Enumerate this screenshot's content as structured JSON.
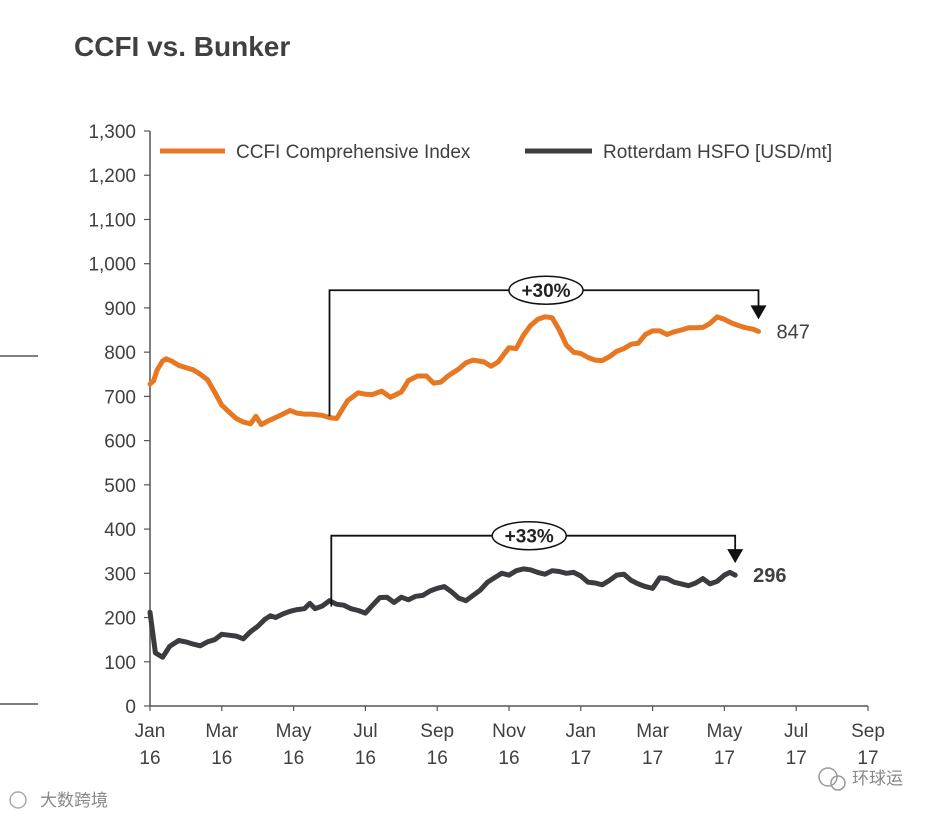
{
  "chart_data": {
    "type": "line",
    "title": "CCFI vs. Bunker",
    "ylim": [
      0,
      1300
    ],
    "yticks": [
      "0",
      "100",
      "200",
      "300",
      "400",
      "500",
      "600",
      "700",
      "800",
      "900",
      "1,000",
      "1,100",
      "1,200",
      "1,300"
    ],
    "xticks": [
      {
        "month": "Jan",
        "year": "16",
        "t": 0
      },
      {
        "month": "Mar",
        "year": "16",
        "t": 2
      },
      {
        "month": "May",
        "year": "16",
        "t": 4
      },
      {
        "month": "Jul",
        "year": "16",
        "t": 6
      },
      {
        "month": "Sep",
        "year": "16",
        "t": 8
      },
      {
        "month": "Nov",
        "year": "16",
        "t": 10
      },
      {
        "month": "Jan",
        "year": "17",
        "t": 12
      },
      {
        "month": "Mar",
        "year": "17",
        "t": 14
      },
      {
        "month": "May",
        "year": "17",
        "t": 16
      },
      {
        "month": "Jul",
        "year": "17",
        "t": 18
      },
      {
        "month": "Sep",
        "year": "17",
        "t": 20
      }
    ],
    "series": [
      {
        "name": "CCFI Comprehensive Index",
        "color": "#e87722",
        "points": [
          [
            0.0,
            728
          ],
          [
            0.1,
            735
          ],
          [
            0.2,
            760
          ],
          [
            0.35,
            780
          ],
          [
            0.45,
            785
          ],
          [
            0.6,
            780
          ],
          [
            0.8,
            770
          ],
          [
            1.0,
            765
          ],
          [
            1.2,
            760
          ],
          [
            1.4,
            750
          ],
          [
            1.6,
            738
          ],
          [
            1.8,
            710
          ],
          [
            2.0,
            680
          ],
          [
            2.2,
            665
          ],
          [
            2.4,
            650
          ],
          [
            2.6,
            642
          ],
          [
            2.8,
            638
          ],
          [
            2.95,
            655
          ],
          [
            3.1,
            636
          ],
          [
            3.3,
            645
          ],
          [
            3.5,
            652
          ],
          [
            3.7,
            660
          ],
          [
            3.9,
            668
          ],
          [
            4.1,
            662
          ],
          [
            4.3,
            660
          ],
          [
            4.5,
            660
          ],
          [
            4.8,
            657
          ],
          [
            5.0,
            652
          ],
          [
            5.2,
            650
          ],
          [
            5.5,
            690
          ],
          [
            5.8,
            708
          ],
          [
            6.0,
            705
          ],
          [
            6.2,
            704
          ],
          [
            6.45,
            712
          ],
          [
            6.7,
            698
          ],
          [
            7.0,
            710
          ],
          [
            7.2,
            736
          ],
          [
            7.45,
            746
          ],
          [
            7.7,
            746
          ],
          [
            7.9,
            730
          ],
          [
            8.1,
            732
          ],
          [
            8.3,
            746
          ],
          [
            8.6,
            762
          ],
          [
            8.8,
            776
          ],
          [
            9.0,
            782
          ],
          [
            9.3,
            778
          ],
          [
            9.5,
            768
          ],
          [
            9.7,
            778
          ],
          [
            10.0,
            810
          ],
          [
            10.2,
            808
          ],
          [
            10.4,
            838
          ],
          [
            10.6,
            860
          ],
          [
            10.8,
            874
          ],
          [
            11.0,
            880
          ],
          [
            11.2,
            878
          ],
          [
            11.4,
            850
          ],
          [
            11.6,
            816
          ],
          [
            11.8,
            800
          ],
          [
            12.0,
            797
          ],
          [
            12.2,
            788
          ],
          [
            12.4,
            782
          ],
          [
            12.6,
            781
          ],
          [
            12.8,
            790
          ],
          [
            13.0,
            802
          ],
          [
            13.2,
            808
          ],
          [
            13.4,
            818
          ],
          [
            13.6,
            820
          ],
          [
            13.8,
            840
          ],
          [
            14.0,
            848
          ],
          [
            14.2,
            848
          ],
          [
            14.4,
            840
          ],
          [
            14.6,
            846
          ],
          [
            14.8,
            850
          ],
          [
            15.0,
            855
          ],
          [
            15.2,
            855
          ],
          [
            15.4,
            856
          ],
          [
            15.6,
            865
          ],
          [
            15.8,
            880
          ],
          [
            16.0,
            874
          ],
          [
            16.2,
            866
          ],
          [
            16.4,
            860
          ],
          [
            16.6,
            855
          ],
          [
            16.8,
            852
          ],
          [
            16.95,
            847
          ]
        ],
        "end_label": "847"
      },
      {
        "name": "Rotterdam HSFO [USD/mt]",
        "color": "#3b3b40",
        "points": [
          [
            0.0,
            212
          ],
          [
            0.15,
            120
          ],
          [
            0.35,
            110
          ],
          [
            0.55,
            135
          ],
          [
            0.8,
            148
          ],
          [
            1.0,
            145
          ],
          [
            1.2,
            140
          ],
          [
            1.4,
            136
          ],
          [
            1.6,
            145
          ],
          [
            1.8,
            150
          ],
          [
            2.0,
            162
          ],
          [
            2.2,
            160
          ],
          [
            2.4,
            158
          ],
          [
            2.6,
            152
          ],
          [
            2.8,
            168
          ],
          [
            3.0,
            180
          ],
          [
            3.2,
            196
          ],
          [
            3.35,
            204
          ],
          [
            3.5,
            200
          ],
          [
            3.7,
            208
          ],
          [
            3.9,
            214
          ],
          [
            4.1,
            218
          ],
          [
            4.3,
            220
          ],
          [
            4.45,
            232
          ],
          [
            4.6,
            220
          ],
          [
            4.8,
            226
          ],
          [
            5.0,
            238
          ],
          [
            5.2,
            230
          ],
          [
            5.4,
            228
          ],
          [
            5.6,
            220
          ],
          [
            5.8,
            216
          ],
          [
            6.0,
            210
          ],
          [
            6.2,
            228
          ],
          [
            6.4,
            245
          ],
          [
            6.6,
            246
          ],
          [
            6.8,
            234
          ],
          [
            7.0,
            246
          ],
          [
            7.2,
            240
          ],
          [
            7.4,
            248
          ],
          [
            7.6,
            250
          ],
          [
            7.8,
            260
          ],
          [
            8.0,
            266
          ],
          [
            8.2,
            270
          ],
          [
            8.4,
            258
          ],
          [
            8.6,
            244
          ],
          [
            8.8,
            238
          ],
          [
            9.0,
            250
          ],
          [
            9.2,
            262
          ],
          [
            9.4,
            280
          ],
          [
            9.6,
            290
          ],
          [
            9.8,
            300
          ],
          [
            10.0,
            296
          ],
          [
            10.2,
            306
          ],
          [
            10.4,
            310
          ],
          [
            10.6,
            308
          ],
          [
            10.8,
            302
          ],
          [
            11.0,
            298
          ],
          [
            11.2,
            306
          ],
          [
            11.4,
            304
          ],
          [
            11.6,
            300
          ],
          [
            11.8,
            302
          ],
          [
            12.0,
            294
          ],
          [
            12.2,
            280
          ],
          [
            12.4,
            278
          ],
          [
            12.6,
            274
          ],
          [
            12.8,
            284
          ],
          [
            13.0,
            296
          ],
          [
            13.2,
            298
          ],
          [
            13.4,
            284
          ],
          [
            13.6,
            276
          ],
          [
            13.8,
            270
          ],
          [
            14.0,
            266
          ],
          [
            14.2,
            290
          ],
          [
            14.4,
            288
          ],
          [
            14.6,
            280
          ],
          [
            14.8,
            276
          ],
          [
            15.0,
            272
          ],
          [
            15.2,
            278
          ],
          [
            15.4,
            288
          ],
          [
            15.6,
            276
          ],
          [
            15.8,
            282
          ],
          [
            16.0,
            296
          ],
          [
            16.15,
            302
          ],
          [
            16.3,
            296
          ]
        ],
        "end_label": "296"
      }
    ],
    "annotations": [
      {
        "label": "+30%",
        "series": "CCFI Comprehensive Index",
        "from_t": 5.0,
        "to_t": 16.95,
        "from_value": 655,
        "bracket_value": 940,
        "to_value": 847
      },
      {
        "label": "+33%",
        "series": "Rotterdam HSFO [USD/mt]",
        "from_t": 5.05,
        "to_t": 16.3,
        "from_value": 225,
        "bracket_value": 385,
        "to_value": 296
      }
    ]
  },
  "watermarks": {
    "bottom_right": "环球运",
    "bottom_left": "大数跨境"
  }
}
